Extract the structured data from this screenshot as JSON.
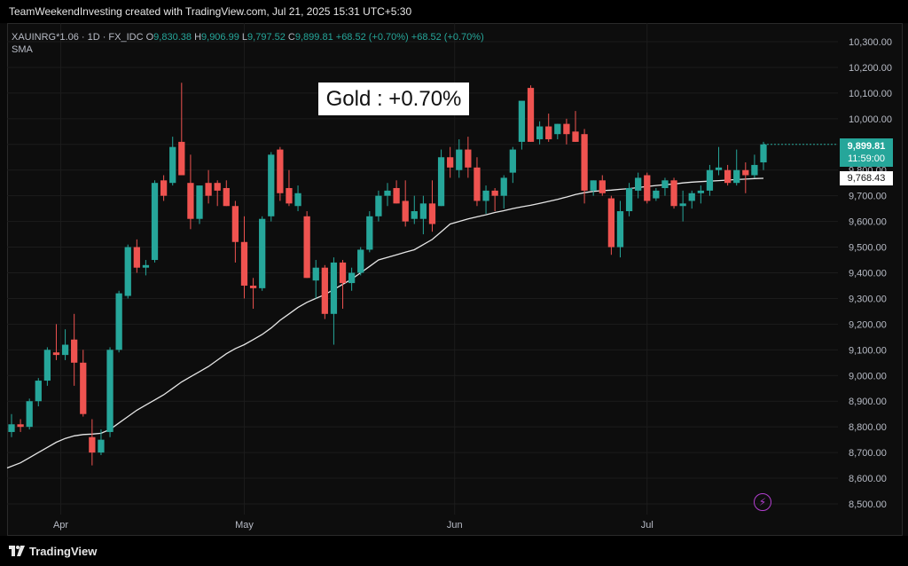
{
  "header": {
    "caption": "TeamWeekendInvesting created with TradingView.com, Jul 21, 2025 15:31 UTC+5:30"
  },
  "legend": {
    "symbol": "XAUINRG*1.06 · 1D · FX_IDC",
    "o_label": "O",
    "o_value": "9,830.38",
    "h_label": "H",
    "h_value": "9,906.99",
    "l_label": "L",
    "l_value": "9,797.52",
    "c_label": "C",
    "c_value": "9,899.81",
    "change": "+68.52 (+0.70%)",
    "change2": "+68.52 (+0.70%)",
    "indicator": "SMA"
  },
  "annotation": "Gold : +0.70%",
  "price_tags": {
    "last": "9,899.81",
    "countdown": "11:59:00",
    "sma": "9,768.43"
  },
  "footer": {
    "brand": "TradingView"
  },
  "colors": {
    "up": "#26a69a",
    "down": "#ef5350",
    "sma": "#e6e6e6",
    "grid": "#1c1c1c"
  },
  "chart_data": {
    "type": "candlestick",
    "title": "",
    "y_axis": {
      "min": 8500,
      "max": 10300,
      "ticks": [
        "10,300.00",
        "10,200.00",
        "10,100.00",
        "10,000.00",
        "9,900.00",
        "9,800.00",
        "9,700.00",
        "9,600.00",
        "9,500.00",
        "9,400.00",
        "9,300.00",
        "9,200.00",
        "9,100.00",
        "9,000.00",
        "8,900.00",
        "8,800.00",
        "8,700.00",
        "8,600.00",
        "8,500.00"
      ],
      "tick_values": [
        10300,
        10200,
        10100,
        10000,
        9900,
        9800,
        9700,
        9600,
        9500,
        9400,
        9300,
        9200,
        9100,
        9000,
        8900,
        8800,
        8700,
        8600,
        8500
      ]
    },
    "x_axis": {
      "labels": [
        "Apr",
        "May",
        "Jun",
        "Jul"
      ],
      "label_index": [
        5.5,
        26,
        49.5,
        71
      ]
    },
    "grid": true,
    "candles": [
      {
        "o": 8780,
        "h": 8850,
        "l": 8760,
        "c": 8810
      },
      {
        "o": 8810,
        "h": 8830,
        "l": 8780,
        "c": 8800
      },
      {
        "o": 8800,
        "h": 8910,
        "l": 8790,
        "c": 8900
      },
      {
        "o": 8900,
        "h": 8990,
        "l": 8880,
        "c": 8980
      },
      {
        "o": 8980,
        "h": 9110,
        "l": 8960,
        "c": 9100
      },
      {
        "o": 9090,
        "h": 9200,
        "l": 9060,
        "c": 9080
      },
      {
        "o": 9080,
        "h": 9180,
        "l": 9060,
        "c": 9120
      },
      {
        "o": 9140,
        "h": 9240,
        "l": 8960,
        "c": 9050
      },
      {
        "o": 9050,
        "h": 9100,
        "l": 8840,
        "c": 8850
      },
      {
        "o": 8760,
        "h": 8830,
        "l": 8650,
        "c": 8700
      },
      {
        "o": 8700,
        "h": 8790,
        "l": 8690,
        "c": 8750
      },
      {
        "o": 8780,
        "h": 9110,
        "l": 8760,
        "c": 9100
      },
      {
        "o": 9100,
        "h": 9330,
        "l": 9090,
        "c": 9320
      },
      {
        "o": 9310,
        "h": 9510,
        "l": 9300,
        "c": 9500
      },
      {
        "o": 9500,
        "h": 9530,
        "l": 9400,
        "c": 9420
      },
      {
        "o": 9420,
        "h": 9450,
        "l": 9390,
        "c": 9430
      },
      {
        "o": 9450,
        "h": 9760,
        "l": 9440,
        "c": 9750
      },
      {
        "o": 9760,
        "h": 9780,
        "l": 9680,
        "c": 9700
      },
      {
        "o": 9750,
        "h": 9930,
        "l": 9740,
        "c": 9890
      },
      {
        "o": 9910,
        "h": 10140,
        "l": 9780,
        "c": 9780
      },
      {
        "o": 9750,
        "h": 9860,
        "l": 9570,
        "c": 9610
      },
      {
        "o": 9610,
        "h": 9740,
        "l": 9590,
        "c": 9740
      },
      {
        "o": 9750,
        "h": 9800,
        "l": 9670,
        "c": 9700
      },
      {
        "o": 9750,
        "h": 9760,
        "l": 9660,
        "c": 9720
      },
      {
        "o": 9730,
        "h": 9760,
        "l": 9660,
        "c": 9660
      },
      {
        "o": 9660,
        "h": 9680,
        "l": 9440,
        "c": 9520
      },
      {
        "o": 9520,
        "h": 9620,
        "l": 9300,
        "c": 9350
      },
      {
        "o": 9350,
        "h": 9380,
        "l": 9260,
        "c": 9340
      },
      {
        "o": 9340,
        "h": 9620,
        "l": 9330,
        "c": 9610
      },
      {
        "o": 9620,
        "h": 9870,
        "l": 9600,
        "c": 9860
      },
      {
        "o": 9880,
        "h": 9890,
        "l": 9680,
        "c": 9710
      },
      {
        "o": 9730,
        "h": 9800,
        "l": 9660,
        "c": 9670
      },
      {
        "o": 9660,
        "h": 9740,
        "l": 9640,
        "c": 9710
      },
      {
        "o": 9620,
        "h": 9640,
        "l": 9380,
        "c": 9380
      },
      {
        "o": 9370,
        "h": 9450,
        "l": 9300,
        "c": 9420
      },
      {
        "o": 9420,
        "h": 9430,
        "l": 9220,
        "c": 9240
      },
      {
        "o": 9240,
        "h": 9460,
        "l": 9120,
        "c": 9440
      },
      {
        "o": 9440,
        "h": 9450,
        "l": 9260,
        "c": 9360
      },
      {
        "o": 9360,
        "h": 9420,
        "l": 9330,
        "c": 9400
      },
      {
        "o": 9400,
        "h": 9500,
        "l": 9390,
        "c": 9490
      },
      {
        "o": 9490,
        "h": 9640,
        "l": 9480,
        "c": 9620
      },
      {
        "o": 9620,
        "h": 9720,
        "l": 9600,
        "c": 9700
      },
      {
        "o": 9700,
        "h": 9750,
        "l": 9660,
        "c": 9720
      },
      {
        "o": 9730,
        "h": 9760,
        "l": 9670,
        "c": 9670
      },
      {
        "o": 9680,
        "h": 9760,
        "l": 9580,
        "c": 9600
      },
      {
        "o": 9610,
        "h": 9700,
        "l": 9590,
        "c": 9640
      },
      {
        "o": 9610,
        "h": 9700,
        "l": 9550,
        "c": 9670
      },
      {
        "o": 9670,
        "h": 9760,
        "l": 9560,
        "c": 9590
      },
      {
        "o": 9660,
        "h": 9880,
        "l": 9660,
        "c": 9850
      },
      {
        "o": 9850,
        "h": 9890,
        "l": 9770,
        "c": 9810
      },
      {
        "o": 9800,
        "h": 9920,
        "l": 9770,
        "c": 9880
      },
      {
        "o": 9880,
        "h": 9930,
        "l": 9770,
        "c": 9810
      },
      {
        "o": 9810,
        "h": 9850,
        "l": 9660,
        "c": 9680
      },
      {
        "o": 9680,
        "h": 9740,
        "l": 9630,
        "c": 9720
      },
      {
        "o": 9720,
        "h": 9730,
        "l": 9640,
        "c": 9700
      },
      {
        "o": 9700,
        "h": 9780,
        "l": 9650,
        "c": 9770
      },
      {
        "o": 9790,
        "h": 9890,
        "l": 9750,
        "c": 9880
      },
      {
        "o": 9910,
        "h": 10060,
        "l": 9880,
        "c": 10070
      },
      {
        "o": 10120,
        "h": 10130,
        "l": 9910,
        "c": 9910
      },
      {
        "o": 9920,
        "h": 9990,
        "l": 9900,
        "c": 9970
      },
      {
        "o": 9970,
        "h": 10020,
        "l": 9910,
        "c": 9920
      },
      {
        "o": 9940,
        "h": 9980,
        "l": 9920,
        "c": 9980
      },
      {
        "o": 9980,
        "h": 10000,
        "l": 9900,
        "c": 9940
      },
      {
        "o": 9950,
        "h": 10030,
        "l": 9910,
        "c": 9910
      },
      {
        "o": 9940,
        "h": 9960,
        "l": 9670,
        "c": 9720
      },
      {
        "o": 9720,
        "h": 9760,
        "l": 9700,
        "c": 9760
      },
      {
        "o": 9760,
        "h": 9780,
        "l": 9700,
        "c": 9710
      },
      {
        "o": 9690,
        "h": 9700,
        "l": 9470,
        "c": 9500
      },
      {
        "o": 9500,
        "h": 9680,
        "l": 9460,
        "c": 9640
      },
      {
        "o": 9640,
        "h": 9750,
        "l": 9620,
        "c": 9730
      },
      {
        "o": 9720,
        "h": 9790,
        "l": 9690,
        "c": 9770
      },
      {
        "o": 9780,
        "h": 9790,
        "l": 9670,
        "c": 9680
      },
      {
        "o": 9690,
        "h": 9730,
        "l": 9680,
        "c": 9720
      },
      {
        "o": 9730,
        "h": 9770,
        "l": 9700,
        "c": 9760
      },
      {
        "o": 9760,
        "h": 9770,
        "l": 9650,
        "c": 9660
      },
      {
        "o": 9660,
        "h": 9720,
        "l": 9600,
        "c": 9670
      },
      {
        "o": 9680,
        "h": 9720,
        "l": 9650,
        "c": 9710
      },
      {
        "o": 9710,
        "h": 9740,
        "l": 9670,
        "c": 9720
      },
      {
        "o": 9720,
        "h": 9820,
        "l": 9700,
        "c": 9800
      },
      {
        "o": 9800,
        "h": 9890,
        "l": 9780,
        "c": 9810
      },
      {
        "o": 9800,
        "h": 9820,
        "l": 9740,
        "c": 9750
      },
      {
        "o": 9750,
        "h": 9880,
        "l": 9740,
        "c": 9800
      },
      {
        "o": 9800,
        "h": 9830,
        "l": 9710,
        "c": 9780
      },
      {
        "o": 9780,
        "h": 9860,
        "l": 9770,
        "c": 9820
      },
      {
        "o": 9830,
        "h": 9910,
        "l": 9800,
        "c": 9900
      }
    ],
    "sma": [
      8640,
      8660,
      8680,
      8700,
      8720,
      8740,
      8755,
      8765,
      8770,
      8772,
      8775,
      8790,
      8815,
      8840,
      8865,
      8885,
      8905,
      8925,
      8950,
      8975,
      8995,
      9015,
      9035,
      9060,
      9085,
      9105,
      9120,
      9140,
      9160,
      9185,
      9215,
      9240,
      9265,
      9285,
      9300,
      9315,
      9335,
      9355,
      9375,
      9400,
      9425,
      9450,
      9460,
      9470,
      9480,
      9490,
      9510,
      9530,
      9560,
      9590,
      9600,
      9610,
      9618,
      9626,
      9635,
      9642,
      9650,
      9657,
      9663,
      9670,
      9678,
      9686,
      9695,
      9705,
      9712,
      9717,
      9720,
      9722,
      9725,
      9728,
      9732,
      9736,
      9740,
      9743,
      9746,
      9750,
      9753,
      9755,
      9757,
      9759,
      9761,
      9763,
      9765,
      9767,
      9768
    ]
  }
}
